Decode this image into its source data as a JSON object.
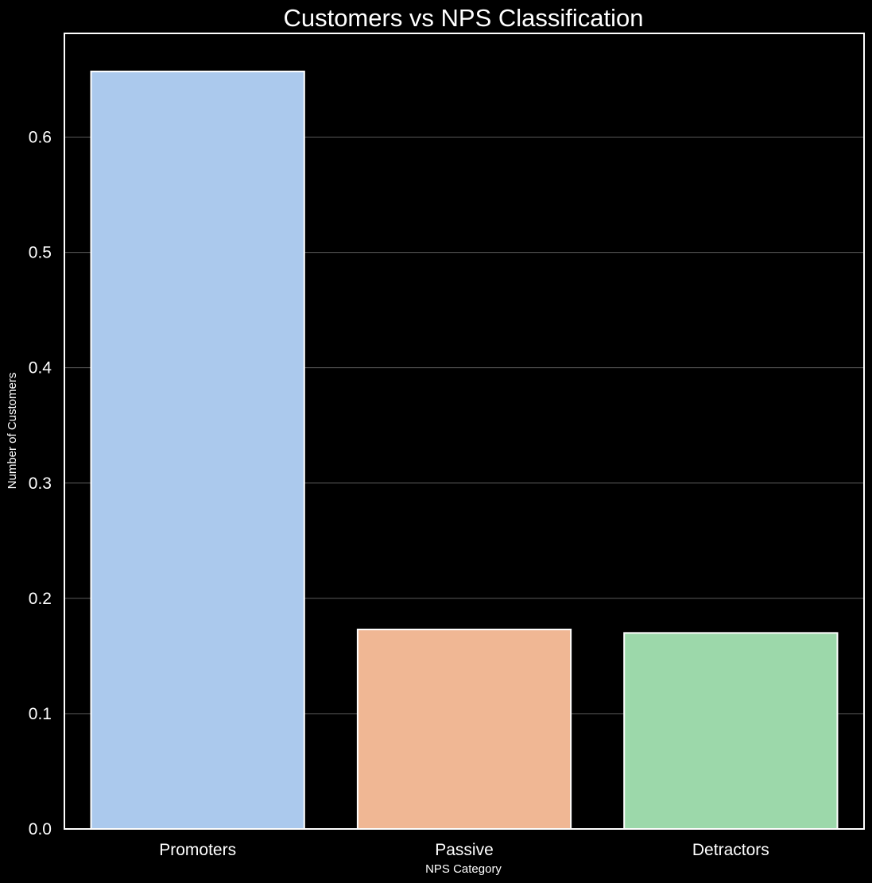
{
  "chart_data": {
    "type": "bar",
    "title": "Customers vs NPS Classification",
    "xlabel": "NPS Category",
    "ylabel": "Number of Customers",
    "categories": [
      "Promoters",
      "Passive",
      "Detractors"
    ],
    "values": [
      0.657,
      0.173,
      0.17
    ],
    "colors": [
      "#abc9ed",
      "#f0b794",
      "#9cd8aa"
    ],
    "ylim": [
      0,
      0.69
    ],
    "yticks": [
      0.0,
      0.1,
      0.2,
      0.3,
      0.4,
      0.5,
      0.6
    ],
    "ytick_labels": [
      "0.0",
      "0.1",
      "0.2",
      "0.3",
      "0.4",
      "0.5",
      "0.6"
    ],
    "grid": true,
    "grid_axis": "y",
    "background": "#000000",
    "text_color": "#ffffff",
    "edge_color": "#ffffff"
  }
}
